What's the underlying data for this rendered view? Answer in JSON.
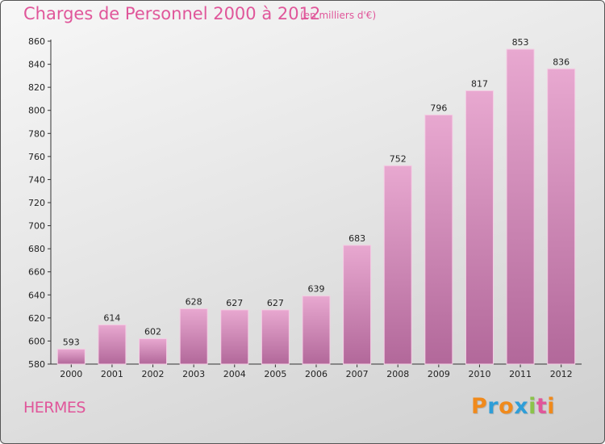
{
  "header": {
    "title": "Charges de Personnel 2000 à 2012",
    "subtitle": "(en milliers d'€)"
  },
  "footer": {
    "commune": "HERMES",
    "logo_letters": [
      "P",
      "r",
      "o",
      "x",
      "i",
      "t",
      "i"
    ],
    "logo_colors": [
      "#f08a1c",
      "#2f9ed8",
      "#f08a1c",
      "#2f9ed8",
      "#8bc34a",
      "#e0569a",
      "#f08a1c"
    ]
  },
  "colors": {
    "bar_top": "#e8a8d0",
    "bar_bottom": "#b2689a",
    "bar_edge": "#f4cde4",
    "title": "#e0569a"
  },
  "chart_data": {
    "type": "bar",
    "title": "Charges de Personnel 2000 à 2012",
    "subtitle": "(en milliers d'€)",
    "xlabel": "",
    "ylabel": "",
    "categories": [
      "2000",
      "2001",
      "2002",
      "2003",
      "2004",
      "2005",
      "2006",
      "2007",
      "2008",
      "2009",
      "2010",
      "2011",
      "2012"
    ],
    "values": [
      593,
      614,
      602,
      628,
      627,
      627,
      639,
      683,
      752,
      796,
      817,
      853,
      836
    ],
    "ylim": [
      580,
      860
    ],
    "yticks": [
      580,
      600,
      620,
      640,
      660,
      680,
      700,
      720,
      740,
      760,
      780,
      800,
      820,
      840,
      860
    ],
    "grid": false,
    "legend": "none"
  }
}
